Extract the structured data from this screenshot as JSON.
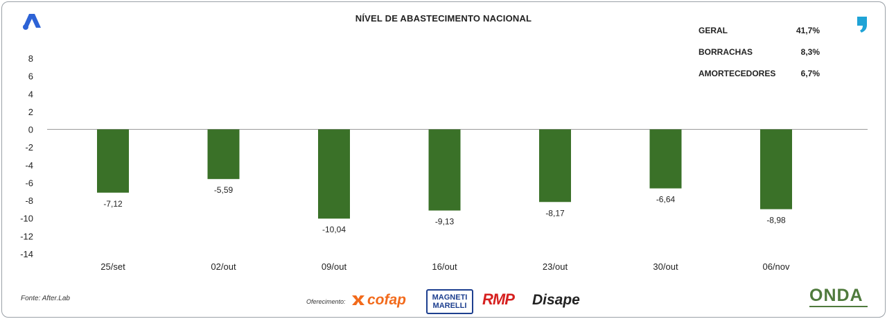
{
  "chart_data": {
    "type": "bar",
    "title": "NÍVEL DE ABASTECIMENTO NACIONAL",
    "categories": [
      "25/set",
      "02/out",
      "09/out",
      "16/out",
      "23/out",
      "30/out",
      "06/nov"
    ],
    "values": [
      -7.12,
      -5.59,
      -10.04,
      -9.13,
      -8.17,
      -6.64,
      -8.98
    ],
    "data_labels": [
      "-7,12",
      "-5,59",
      "-10,04",
      "-9,13",
      "-8,17",
      "-6,64",
      "-8,98"
    ],
    "bar_color": "#3a7128",
    "ylim": [
      -14,
      8
    ],
    "yticks": [
      8,
      6,
      4,
      2,
      0,
      -2,
      -4,
      -6,
      -8,
      -10,
      -12,
      -14
    ],
    "grid": false,
    "xlabel": "",
    "ylabel": ""
  },
  "summary": [
    {
      "label": "GERAL",
      "value": "41,7%"
    },
    {
      "label": "BORRACHAS",
      "value": "8,3%"
    },
    {
      "label": "AMORTECEDORES",
      "value": "6,7%"
    }
  ],
  "footer": {
    "source": "Fonte: After.Lab",
    "sponsor_label": "Oferecimento:",
    "sponsors": [
      "cofap",
      "MAGNETI MARELLI",
      "RMP",
      "Disape"
    ],
    "onda": "ONDA"
  },
  "colors": {
    "brand_blue": "#2d63d6",
    "accent_teal": "#1fa3d6",
    "onda_green": "#4f7a3c"
  }
}
